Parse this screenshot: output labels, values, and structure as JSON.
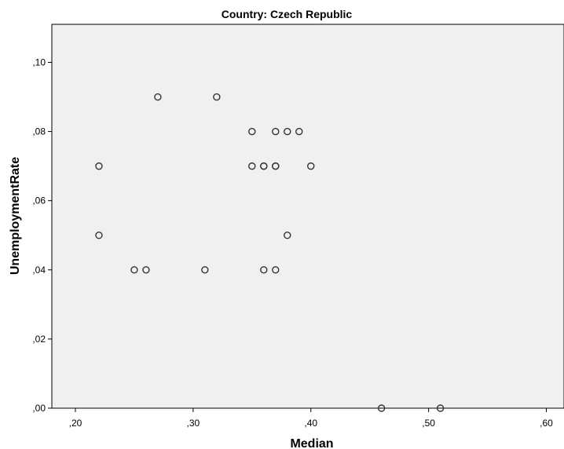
{
  "chart_data": {
    "type": "scatter",
    "title": "Country: Czech Republic",
    "xlabel": "Median",
    "ylabel": "UnemploymentRate",
    "xlim": [
      0.18,
      0.615
    ],
    "ylim": [
      0.0,
      0.111
    ],
    "x_ticks": [
      {
        "value": 0.2,
        "label": ",20"
      },
      {
        "value": 0.3,
        "label": ",30"
      },
      {
        "value": 0.4,
        "label": ",40"
      },
      {
        "value": 0.5,
        "label": ",50"
      },
      {
        "value": 0.6,
        "label": ",60"
      }
    ],
    "y_ticks": [
      {
        "value": 0.0,
        "label": ",00"
      },
      {
        "value": 0.02,
        "label": ",02"
      },
      {
        "value": 0.04,
        "label": ",04"
      },
      {
        "value": 0.06,
        "label": ",06"
      },
      {
        "value": 0.08,
        "label": ",08"
      },
      {
        "value": 0.1,
        "label": ",10"
      }
    ],
    "grid": false,
    "plot_background": "#f0f0f0",
    "marker_stroke": "#333333",
    "points": [
      {
        "x": 0.27,
        "y": 0.09
      },
      {
        "x": 0.32,
        "y": 0.09
      },
      {
        "x": 0.35,
        "y": 0.08
      },
      {
        "x": 0.37,
        "y": 0.08
      },
      {
        "x": 0.38,
        "y": 0.08
      },
      {
        "x": 0.39,
        "y": 0.08
      },
      {
        "x": 0.22,
        "y": 0.07
      },
      {
        "x": 0.35,
        "y": 0.07
      },
      {
        "x": 0.36,
        "y": 0.07
      },
      {
        "x": 0.36,
        "y": 0.07
      },
      {
        "x": 0.37,
        "y": 0.07
      },
      {
        "x": 0.37,
        "y": 0.07
      },
      {
        "x": 0.4,
        "y": 0.07
      },
      {
        "x": 0.22,
        "y": 0.05
      },
      {
        "x": 0.38,
        "y": 0.05
      },
      {
        "x": 0.25,
        "y": 0.04
      },
      {
        "x": 0.26,
        "y": 0.04
      },
      {
        "x": 0.31,
        "y": 0.04
      },
      {
        "x": 0.36,
        "y": 0.04
      },
      {
        "x": 0.37,
        "y": 0.04
      },
      {
        "x": 0.46,
        "y": 0.0
      },
      {
        "x": 0.51,
        "y": 0.0
      }
    ]
  }
}
